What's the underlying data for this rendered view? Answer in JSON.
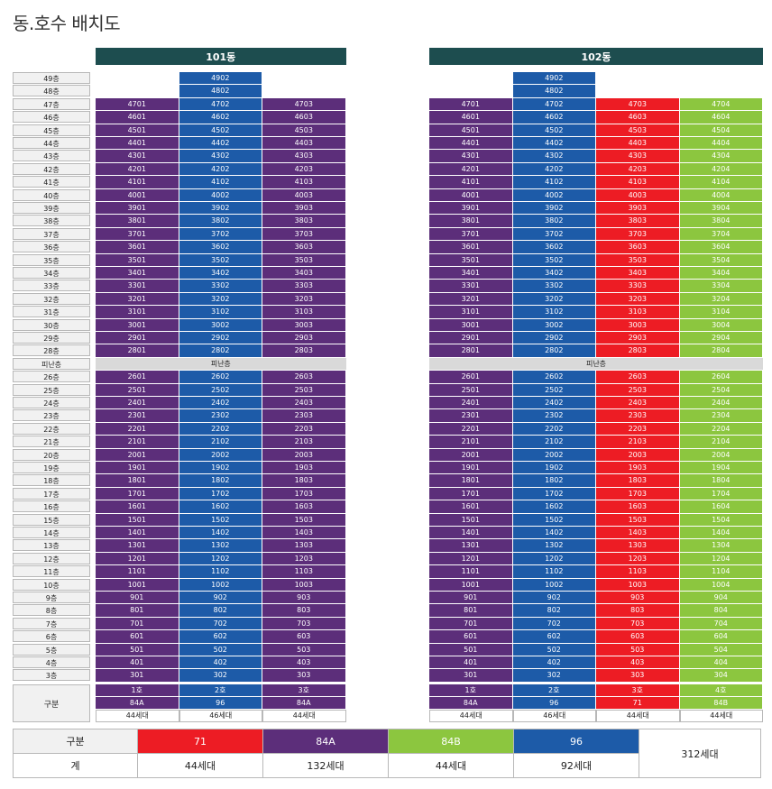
{
  "title": "동.호수 배치도",
  "refuge_label": "피난층",
  "floors_top": [
    "49층",
    "48층",
    "47층",
    "46층",
    "45층",
    "44층",
    "43층",
    "42층",
    "41층",
    "40층",
    "39층",
    "38층",
    "37층",
    "36층",
    "35층",
    "34층",
    "33층",
    "32층",
    "31층",
    "30층",
    "29층",
    "28층"
  ],
  "floors_bottom": [
    "26층",
    "25층",
    "24층",
    "23층",
    "22층",
    "21층",
    "20층",
    "19층",
    "18층",
    "17층",
    "16층",
    "15층",
    "14층",
    "13층",
    "12층",
    "11층",
    "10층",
    "9층",
    "8층",
    "7층",
    "6층",
    "5층",
    "4층",
    "3층"
  ],
  "gubun_label": "구분",
  "buildings": [
    {
      "name": "101동",
      "lines": [
        {
          "color": "purple",
          "ho": "1호",
          "type": "84A",
          "count": "44세대",
          "top_floor": 47
        },
        {
          "color": "blue",
          "ho": "2호",
          "type": "96",
          "count": "46세대",
          "top_floor": 49
        },
        {
          "color": "purple",
          "ho": "3호",
          "type": "84A",
          "count": "44세대",
          "top_floor": 47
        }
      ]
    },
    {
      "name": "102동",
      "lines": [
        {
          "color": "purple",
          "ho": "1호",
          "type": "84A",
          "count": "44세대",
          "top_floor": 47
        },
        {
          "color": "blue",
          "ho": "2호",
          "type": "96",
          "count": "46세대",
          "top_floor": 49
        },
        {
          "color": "red",
          "ho": "3호",
          "type": "71",
          "count": "44세대",
          "top_floor": 47
        },
        {
          "color": "green",
          "ho": "4호",
          "type": "84B",
          "count": "44세대",
          "top_floor": 47
        }
      ]
    }
  ],
  "colors": {
    "purple": "#5c2e7a",
    "blue": "#1d5ba8",
    "red": "#ed1c24",
    "green": "#8cc63f",
    "header": "#1d4d4f"
  },
  "summary": {
    "row1_label": "구분",
    "row2_label": "계",
    "types": [
      {
        "name": "71",
        "color": "red",
        "count": "44세대"
      },
      {
        "name": "84A",
        "color": "purple",
        "count": "132세대"
      },
      {
        "name": "84B",
        "color": "green",
        "count": "44세대"
      },
      {
        "name": "96",
        "color": "blue",
        "count": "92세대"
      }
    ],
    "total": "312세대"
  }
}
